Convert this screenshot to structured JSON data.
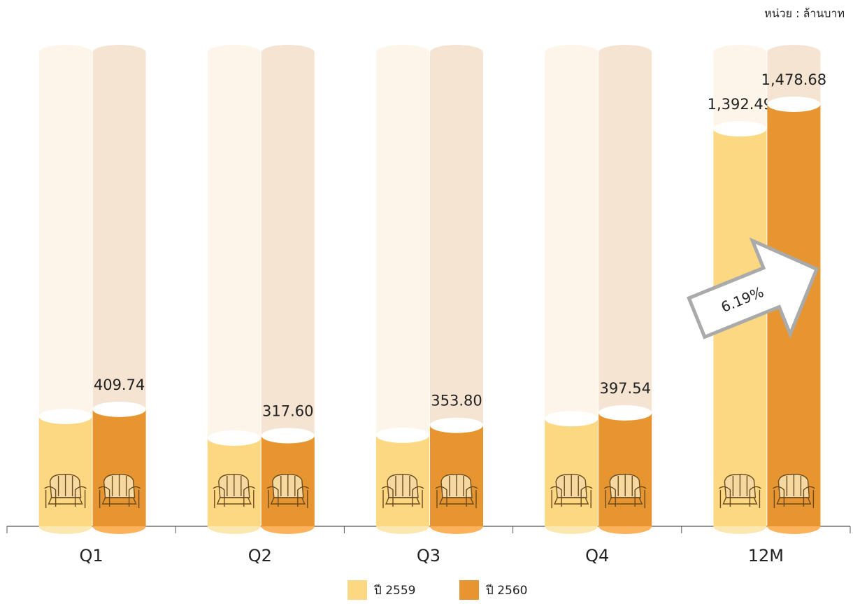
{
  "chart_data": {
    "type": "bar",
    "unit_label": "หน่วย : ล้านบาท",
    "categories": [
      "Q1",
      "Q2",
      "Q3",
      "Q4",
      "12M"
    ],
    "series": [
      {
        "name": "ปี 2559",
        "color": "#fcd882",
        "values": [
          385,
          309,
          319,
          377,
          1392.49
        ],
        "value_labels": [
          null,
          null,
          null,
          null,
          "1,392.49"
        ]
      },
      {
        "name": "ปี 2560",
        "color": "#e69530",
        "values": [
          409.74,
          317.6,
          353.8,
          397.54,
          1478.68
        ],
        "value_labels": [
          "409.74",
          "317.60",
          "353.80",
          "397.54",
          "1,478.68"
        ]
      }
    ],
    "ylim": [
      0,
      1660
    ],
    "annotation": "6.19%"
  }
}
